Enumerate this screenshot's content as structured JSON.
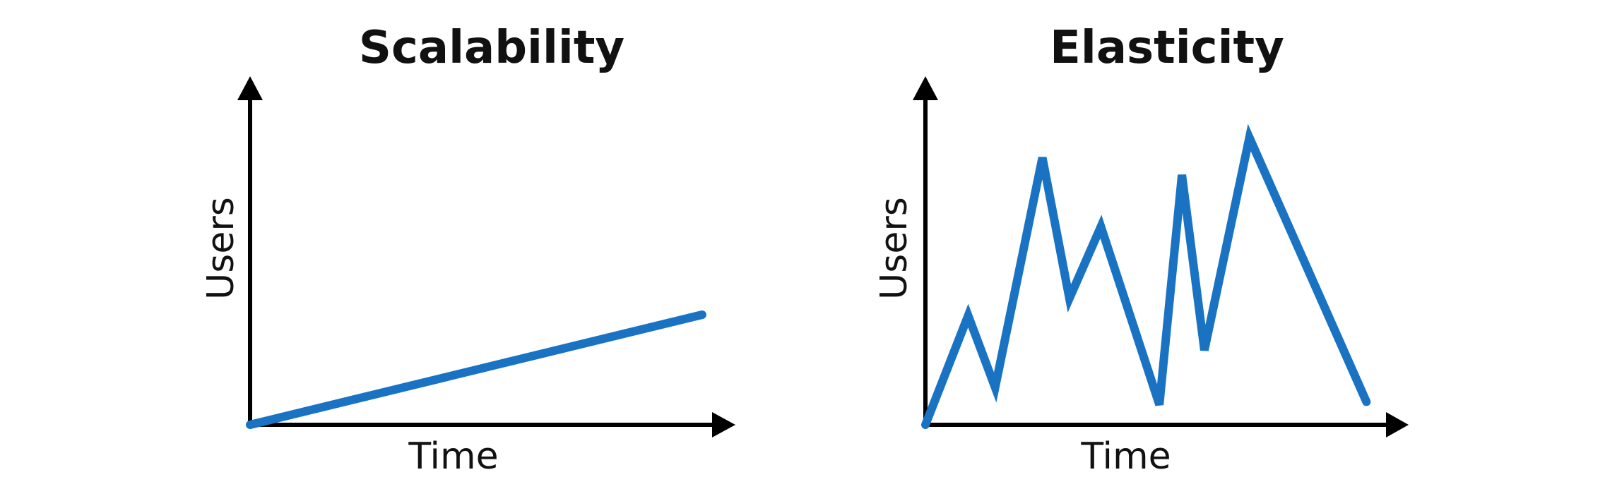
{
  "colors": {
    "series": "#1a73c2",
    "axis": "#000000"
  },
  "chart_data": [
    {
      "type": "line",
      "title": "Scalability",
      "xlabel": "Time",
      "ylabel": "Users",
      "xlim": [
        0,
        10
      ],
      "ylim": [
        0,
        10
      ],
      "grid": false,
      "axis_arrows": true,
      "tick_labels": false,
      "series": [
        {
          "x": [
            0,
            10
          ],
          "y": [
            0,
            3.9
          ]
        }
      ]
    },
    {
      "type": "line",
      "title": "Elasticity",
      "xlabel": "Time",
      "ylabel": "Users",
      "xlim": [
        0,
        10
      ],
      "ylim": [
        0,
        10
      ],
      "grid": false,
      "axis_arrows": true,
      "tick_labels": false,
      "series": [
        {
          "x": [
            0,
            0.95,
            1.55,
            2.6,
            3.2,
            3.9,
            5.2,
            5.7,
            6.2,
            7.2,
            9.8
          ],
          "y": [
            0,
            3.8,
            1.3,
            9.3,
            4.4,
            6.9,
            0.7,
            8.7,
            2.6,
            10.0,
            0.8
          ]
        }
      ]
    }
  ]
}
